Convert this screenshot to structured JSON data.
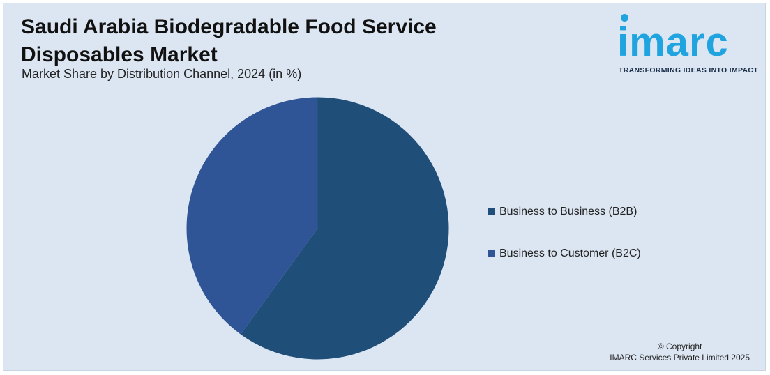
{
  "header": {
    "title": "Saudi Arabia Biodegradable Food Service Disposables Market",
    "subtitle": "Market Share by Distribution Channel, 2024 (in %)"
  },
  "logo": {
    "wordmark": "imarc",
    "tagline": "TRANSFORMING IDEAS INTO IMPACT",
    "color": "#1fa4e0"
  },
  "footer": {
    "copyright_line1": "© Copyright",
    "copyright_line2": "IMARC Services Private Limited 2025"
  },
  "chart_data": {
    "type": "pie",
    "title": "Saudi Arabia Biodegradable Food Service Disposables Market",
    "subtitle": "Market Share by Distribution Channel, 2024 (in %)",
    "legend_position": "right",
    "categories": [
      "Business to Business (B2B)",
      "Business to Customer (B2C)"
    ],
    "values": [
      60,
      40
    ],
    "colors": [
      "#1f4e79",
      "#2f5597"
    ],
    "legend": [
      {
        "label": "Business to Business (B2B)",
        "color": "#1f4e79"
      },
      {
        "label": "Business to Customer (B2C)",
        "color": "#2f5597"
      }
    ]
  }
}
